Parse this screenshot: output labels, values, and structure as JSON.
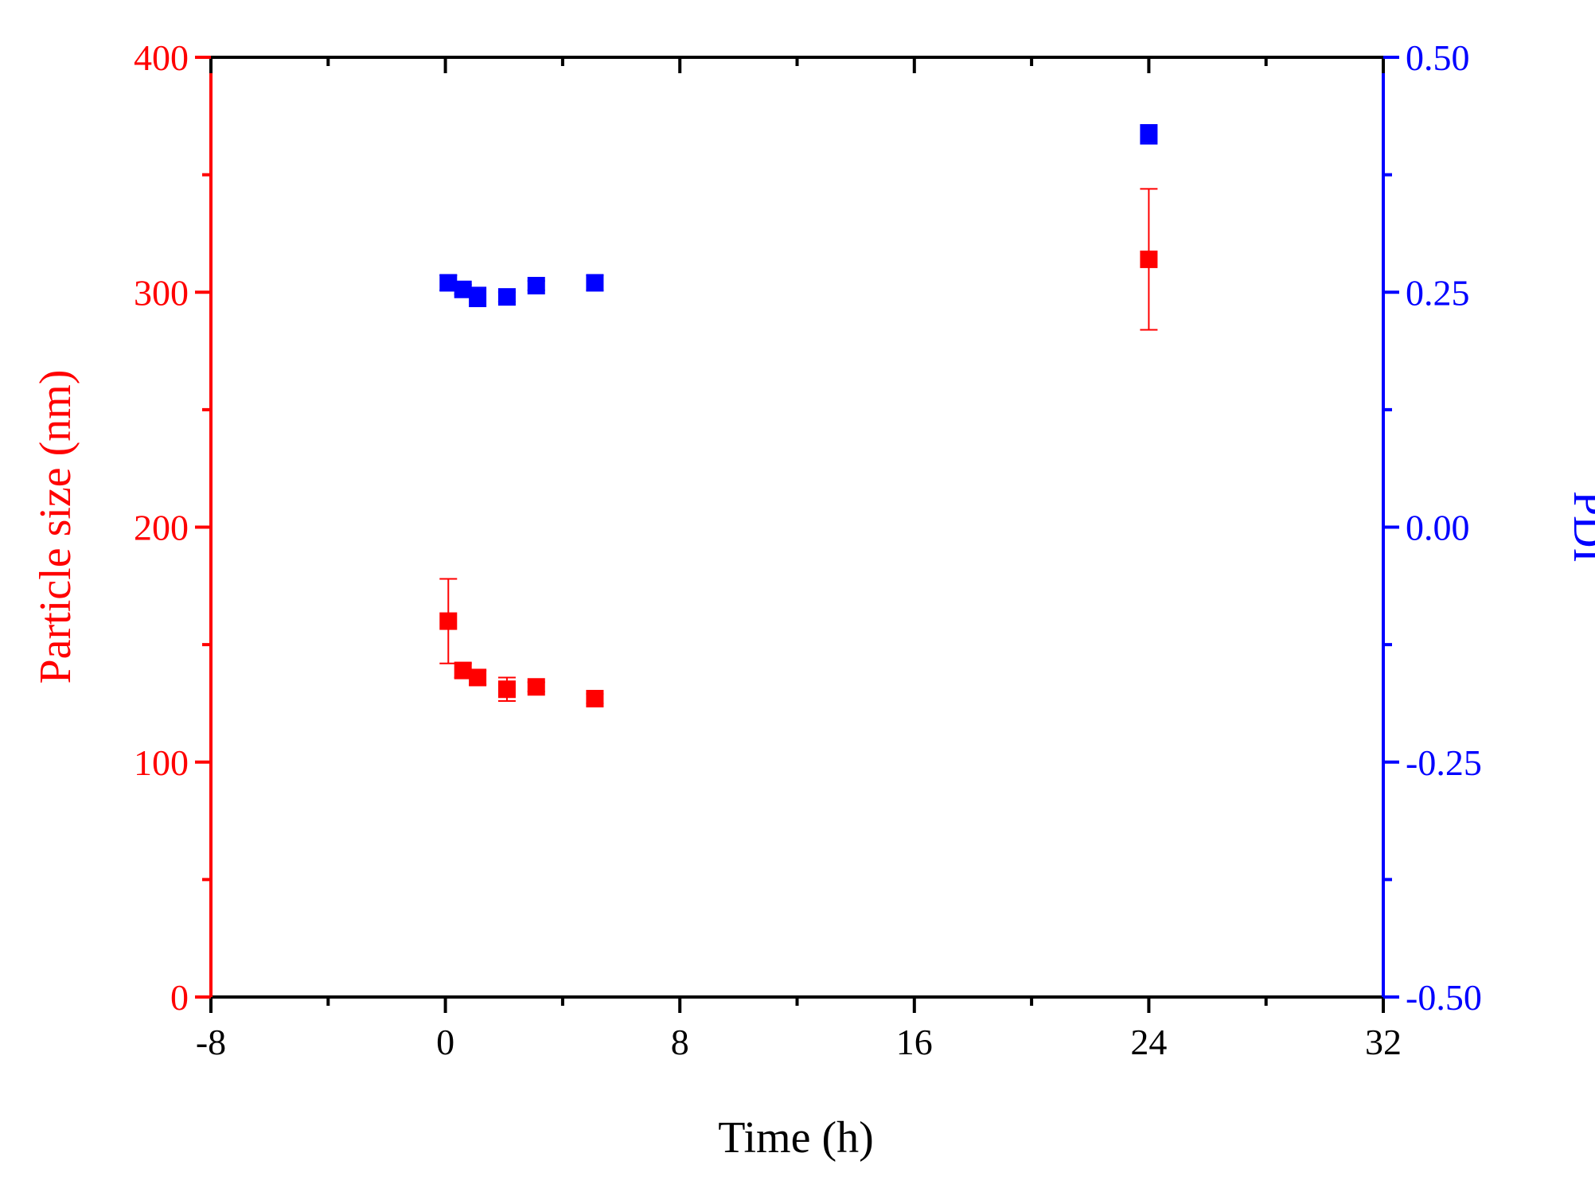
{
  "chart_data": {
    "type": "scatter",
    "title": "",
    "xlabel": "Time (h)",
    "ylabel_left": "Particle size (nm)",
    "ylabel_right": "PDI",
    "xlim": [
      -8,
      32
    ],
    "ylim_left": [
      0,
      400
    ],
    "ylim_right": [
      -0.5,
      0.5
    ],
    "x_ticks": [
      "-8",
      "0",
      "8",
      "16",
      "24",
      "32"
    ],
    "y_left_ticks": [
      "0",
      "100",
      "200",
      "300",
      "400"
    ],
    "y_right_ticks": [
      "-0.50",
      "-0.25",
      "0.00",
      "0.25",
      "0.50"
    ],
    "grid": false,
    "legend": "none",
    "colors": {
      "left_axis": "#ff0000",
      "right_axis": "#0000ff",
      "frame": "#000000"
    },
    "series": [
      {
        "axis": "left",
        "color": "#ff0000",
        "marker": "square",
        "points": [
          {
            "x": 0.1,
            "y": 160,
            "err": 18
          },
          {
            "x": 0.6,
            "y": 139,
            "err": 3
          },
          {
            "x": 1.1,
            "y": 136,
            "err": 3
          },
          {
            "x": 2.1,
            "y": 131,
            "err": 5
          },
          {
            "x": 3.1,
            "y": 132,
            "err": 2
          },
          {
            "x": 5.1,
            "y": 127,
            "err": 2
          },
          {
            "x": 24.0,
            "y": 314,
            "err": 30
          }
        ]
      },
      {
        "axis": "right",
        "color": "#0000ff",
        "marker": "square",
        "points": [
          {
            "x": 0.1,
            "y": 0.26,
            "err": 0.008
          },
          {
            "x": 0.6,
            "y": 0.253,
            "err": 0.005
          },
          {
            "x": 1.1,
            "y": 0.245,
            "err": 0.01
          },
          {
            "x": 2.1,
            "y": 0.245,
            "err": 0.005
          },
          {
            "x": 3.1,
            "y": 0.257,
            "err": 0.005
          },
          {
            "x": 5.1,
            "y": 0.26,
            "err": 0.008
          },
          {
            "x": 24.0,
            "y": 0.418,
            "err": 0.01
          }
        ]
      }
    ]
  }
}
